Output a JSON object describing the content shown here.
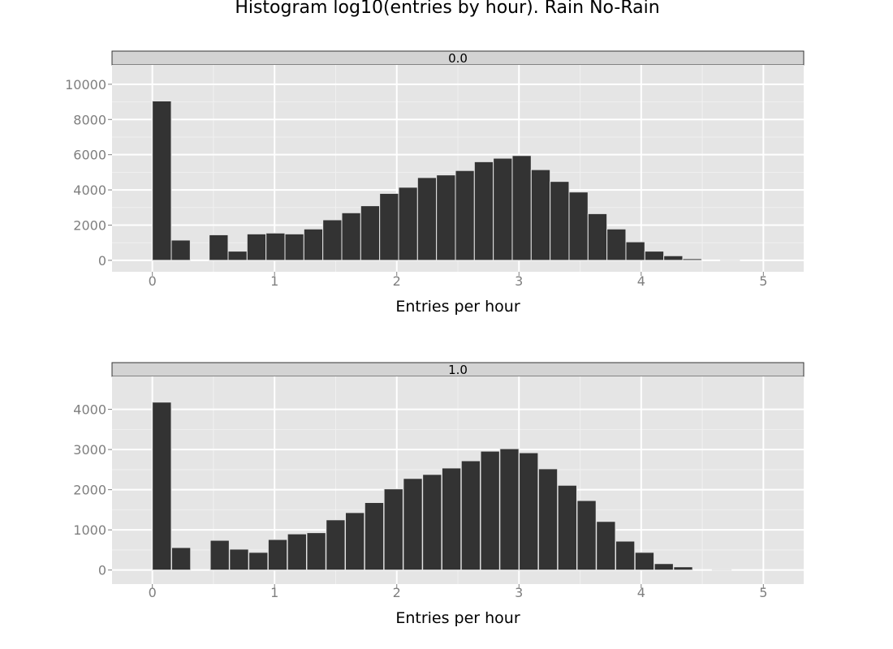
{
  "colors": {
    "panel_background": "#e5e5e5",
    "major_grid": "#ffffff",
    "minor_grid": "#f0f0f0",
    "strip_background": "#d3d3d3",
    "bar_fill": "#333333",
    "bar_outline": "#e5e5e5",
    "tick_label": "#7f7f7f"
  },
  "chart_data": {
    "type": "bar",
    "title": "Histogram log10(entries by hour). Rain No-Rain",
    "bin_width": 0.155,
    "panels": [
      {
        "facet_label": "0.0",
        "xlabel": "Entries per hour",
        "ylabel": "",
        "xlim": [
          -0.33,
          5.33
        ],
        "ylim": [
          -650,
          11100
        ],
        "x_ticks": [
          0,
          1,
          2,
          3,
          4,
          5
        ],
        "x_tick_labels": [
          "0",
          "1",
          "2",
          "3",
          "4",
          "5"
        ],
        "y_ticks": [
          0,
          2000,
          4000,
          6000,
          8000,
          10000
        ],
        "y_tick_labels": [
          "0",
          "2000",
          "4000",
          "6000",
          "8000",
          "10000"
        ],
        "bin_starts": [
          0,
          0.155,
          0.31,
          0.465,
          0.62,
          0.775,
          0.93,
          1.085,
          1.24,
          1.395,
          1.55,
          1.705,
          1.86,
          2.015,
          2.17,
          2.325,
          2.48,
          2.635,
          2.79,
          2.945,
          3.1,
          3.255,
          3.41,
          3.565,
          3.72,
          3.875,
          4.03,
          4.185,
          4.34,
          4.495,
          4.65,
          4.805,
          4.96,
          5.115
        ],
        "counts": [
          9050,
          1150,
          0,
          1450,
          520,
          1500,
          1550,
          1500,
          1780,
          2300,
          2700,
          3100,
          3800,
          4150,
          4700,
          4850,
          5100,
          5600,
          5800,
          5950,
          5150,
          4480,
          3880,
          2650,
          1780,
          1050,
          520,
          260,
          90,
          0,
          10,
          0,
          0,
          0
        ]
      },
      {
        "facet_label": "1.0",
        "xlabel": "Entries per hour",
        "ylabel": "",
        "xlim": [
          -0.33,
          5.33
        ],
        "ylim": [
          -350,
          4820
        ],
        "x_ticks": [
          0,
          1,
          2,
          3,
          4,
          5
        ],
        "x_tick_labels": [
          "0",
          "1",
          "2",
          "3",
          "4",
          "5"
        ],
        "y_ticks": [
          0,
          1000,
          2000,
          3000,
          4000
        ],
        "y_tick_labels": [
          "0",
          "1000",
          "2000",
          "3000",
          "4000"
        ],
        "bin_starts": [
          0,
          0.158,
          0.316,
          0.474,
          0.632,
          0.79,
          0.948,
          1.106,
          1.264,
          1.422,
          1.58,
          1.738,
          1.896,
          2.054,
          2.212,
          2.37,
          2.528,
          2.686,
          2.844,
          3.002,
          3.16,
          3.318,
          3.476,
          3.634,
          3.792,
          3.95,
          4.108,
          4.266,
          4.424,
          4.582,
          4.74,
          4.898,
          5.056
        ],
        "counts": [
          4180,
          560,
          0,
          740,
          520,
          440,
          760,
          900,
          930,
          1250,
          1430,
          1680,
          2020,
          2280,
          2380,
          2540,
          2720,
          2960,
          3020,
          2920,
          2520,
          2110,
          1730,
          1210,
          720,
          440,
          160,
          80,
          0,
          10,
          0,
          0,
          0
        ]
      }
    ]
  }
}
